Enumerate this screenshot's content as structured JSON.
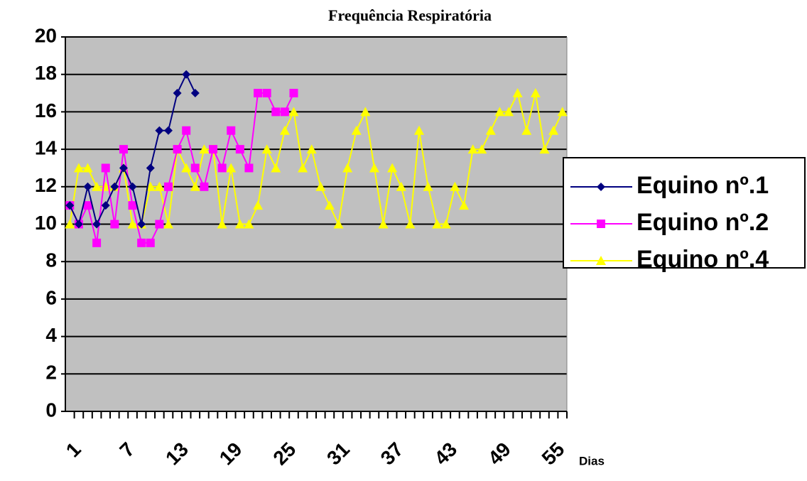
{
  "chart_data": {
    "type": "line",
    "title": "Frequência Respiratória",
    "xlabel": "Dias",
    "categories": [
      1,
      null,
      null,
      null,
      null,
      null,
      7,
      null,
      null,
      null,
      null,
      null,
      13,
      null,
      null,
      null,
      null,
      null,
      19,
      null,
      null,
      null,
      null,
      null,
      25,
      null,
      null,
      null,
      null,
      null,
      31,
      null,
      null,
      null,
      null,
      null,
      37,
      null,
      null,
      null,
      null,
      null,
      43,
      null,
      null,
      null,
      null,
      null,
      49,
      null,
      null,
      null,
      null,
      null,
      55,
      null
    ],
    "series": [
      {
        "name": "Equino nº.1",
        "color": "#000080",
        "marker": "diamond",
        "values": [
          11,
          10,
          12,
          10,
          11,
          12,
          13,
          12,
          10,
          13,
          15,
          15,
          17,
          18,
          17,
          null,
          null,
          null,
          null,
          null,
          null,
          null,
          null,
          null,
          null,
          null,
          null,
          null,
          null,
          null,
          null,
          null,
          null,
          null,
          null,
          null,
          null,
          null,
          null,
          null,
          null,
          null,
          null,
          null,
          null,
          null,
          null,
          null,
          null,
          null,
          null,
          null,
          null,
          null,
          null,
          null
        ]
      },
      {
        "name": "Equino nº.2",
        "color": "#ff00ff",
        "marker": "square",
        "values": [
          11,
          10,
          11,
          9,
          13,
          10,
          14,
          11,
          9,
          9,
          10,
          12,
          14,
          15,
          13,
          12,
          14,
          13,
          15,
          14,
          13,
          17,
          17,
          16,
          16,
          17,
          null,
          null,
          null,
          null,
          null,
          null,
          null,
          null,
          null,
          null,
          null,
          null,
          null,
          null,
          null,
          null,
          null,
          null,
          null,
          null,
          null,
          null,
          null,
          null,
          null,
          null,
          null,
          null,
          null,
          null
        ]
      },
      {
        "name": "Equino nº.4",
        "color": "#ffff00",
        "marker": "triangle",
        "values": [
          10,
          13,
          13,
          12,
          12,
          12,
          13,
          10,
          10,
          12,
          12,
          10,
          14,
          13,
          12,
          14,
          14,
          10,
          13,
          10,
          10,
          11,
          14,
          13,
          15,
          16,
          13,
          14,
          12,
          11,
          10,
          13,
          15,
          16,
          13,
          10,
          13,
          12,
          10,
          15,
          12,
          10,
          10,
          12,
          11,
          14,
          14,
          15,
          16,
          16,
          17,
          15,
          17,
          14,
          15,
          16
        ]
      }
    ],
    "ylim": [
      0,
      20
    ],
    "yticks": [
      0,
      2,
      4,
      6,
      8,
      10,
      12,
      14,
      16,
      18,
      20
    ],
    "grid": true,
    "legend": "right",
    "plot_background": "#c0c0c0"
  }
}
